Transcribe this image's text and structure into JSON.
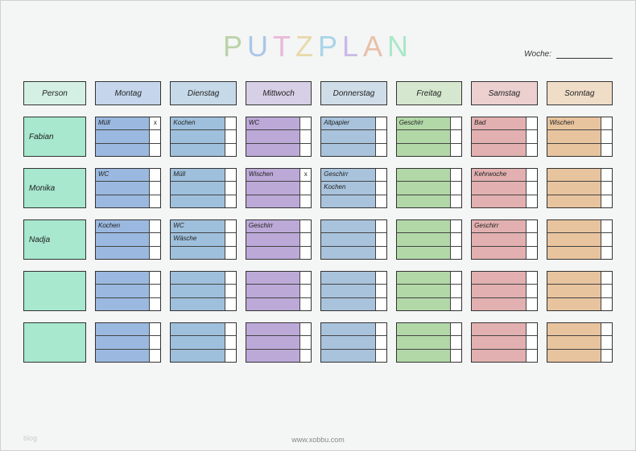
{
  "title_letters": [
    {
      "char": "P",
      "color": "#b9d3a8"
    },
    {
      "char": "U",
      "color": "#a9c7e8"
    },
    {
      "char": "T",
      "color": "#e8b9d6"
    },
    {
      "char": "Z",
      "color": "#e8d9a9"
    },
    {
      "char": "P",
      "color": "#a9d4e8"
    },
    {
      "char": "L",
      "color": "#c9b9e8"
    },
    {
      "char": "A",
      "color": "#e8c0a9"
    },
    {
      "char": "N",
      "color": "#a9e8c9"
    }
  ],
  "week_label": "Woche:",
  "footer_text": "www.xobbu.com",
  "watermark": "blog",
  "columns": [
    {
      "label": "Person",
      "header_bg": "#d4f0e4",
      "cell_bg": "#a7e8ce"
    },
    {
      "label": "Montag",
      "header_bg": "#c5d6ec",
      "cell_bg": "#9bb9e0"
    },
    {
      "label": "Dienstag",
      "header_bg": "#c6d9e8",
      "cell_bg": "#9fc0dc"
    },
    {
      "label": "Mittwoch",
      "header_bg": "#d6cfe6",
      "cell_bg": "#bca9d8"
    },
    {
      "label": "Donnerstag",
      "header_bg": "#cfdde8",
      "cell_bg": "#a9c3dc"
    },
    {
      "label": "Freitag",
      "header_bg": "#d5e8cf",
      "cell_bg": "#b2d8a8"
    },
    {
      "label": "Samstag",
      "header_bg": "#ecd0d0",
      "cell_bg": "#e2b0b0"
    },
    {
      "label": "Sonntag",
      "header_bg": "#f0ddc8",
      "cell_bg": "#e8c49e"
    }
  ],
  "rows": [
    {
      "person": "Fabian",
      "days": [
        [
          {
            "task": "Müll",
            "done": "x"
          },
          {
            "task": "",
            "done": ""
          },
          {
            "task": "",
            "done": ""
          }
        ],
        [
          {
            "task": "Kochen",
            "done": ""
          },
          {
            "task": "",
            "done": ""
          },
          {
            "task": "",
            "done": ""
          }
        ],
        [
          {
            "task": "WC",
            "done": ""
          },
          {
            "task": "",
            "done": ""
          },
          {
            "task": "",
            "done": ""
          }
        ],
        [
          {
            "task": "Altpapier",
            "done": ""
          },
          {
            "task": "",
            "done": ""
          },
          {
            "task": "",
            "done": ""
          }
        ],
        [
          {
            "task": "Geschirr",
            "done": ""
          },
          {
            "task": "",
            "done": ""
          },
          {
            "task": "",
            "done": ""
          }
        ],
        [
          {
            "task": "Bad",
            "done": ""
          },
          {
            "task": "",
            "done": ""
          },
          {
            "task": "",
            "done": ""
          }
        ],
        [
          {
            "task": "Wischen",
            "done": ""
          },
          {
            "task": "",
            "done": ""
          },
          {
            "task": "",
            "done": ""
          }
        ]
      ]
    },
    {
      "person": "Monika",
      "days": [
        [
          {
            "task": "WC",
            "done": ""
          },
          {
            "task": "",
            "done": ""
          },
          {
            "task": "",
            "done": ""
          }
        ],
        [
          {
            "task": "Müll",
            "done": ""
          },
          {
            "task": "",
            "done": ""
          },
          {
            "task": "",
            "done": ""
          }
        ],
        [
          {
            "task": "Wischen",
            "done": "x"
          },
          {
            "task": "",
            "done": ""
          },
          {
            "task": "",
            "done": ""
          }
        ],
        [
          {
            "task": "Geschirr",
            "done": ""
          },
          {
            "task": "Kochen",
            "done": ""
          },
          {
            "task": "",
            "done": ""
          }
        ],
        [
          {
            "task": "",
            "done": ""
          },
          {
            "task": "",
            "done": ""
          },
          {
            "task": "",
            "done": ""
          }
        ],
        [
          {
            "task": "Kehrwoche",
            "done": ""
          },
          {
            "task": "",
            "done": ""
          },
          {
            "task": "",
            "done": ""
          }
        ],
        [
          {
            "task": "",
            "done": ""
          },
          {
            "task": "",
            "done": ""
          },
          {
            "task": "",
            "done": ""
          }
        ]
      ]
    },
    {
      "person": "Nadja",
      "days": [
        [
          {
            "task": "Kochen",
            "done": ""
          },
          {
            "task": "",
            "done": ""
          },
          {
            "task": "",
            "done": ""
          }
        ],
        [
          {
            "task": "WC",
            "done": ""
          },
          {
            "task": "Wäsche",
            "done": ""
          },
          {
            "task": "",
            "done": ""
          }
        ],
        [
          {
            "task": "Geschirr",
            "done": ""
          },
          {
            "task": "",
            "done": ""
          },
          {
            "task": "",
            "done": ""
          }
        ],
        [
          {
            "task": "",
            "done": ""
          },
          {
            "task": "",
            "done": ""
          },
          {
            "task": "",
            "done": ""
          }
        ],
        [
          {
            "task": "",
            "done": ""
          },
          {
            "task": "",
            "done": ""
          },
          {
            "task": "",
            "done": ""
          }
        ],
        [
          {
            "task": "Geschirr",
            "done": ""
          },
          {
            "task": "",
            "done": ""
          },
          {
            "task": "",
            "done": ""
          }
        ],
        [
          {
            "task": "",
            "done": ""
          },
          {
            "task": "",
            "done": ""
          },
          {
            "task": "",
            "done": ""
          }
        ]
      ]
    },
    {
      "person": "",
      "days": [
        [
          {
            "task": "",
            "done": ""
          },
          {
            "task": "",
            "done": ""
          },
          {
            "task": "",
            "done": ""
          }
        ],
        [
          {
            "task": "",
            "done": ""
          },
          {
            "task": "",
            "done": ""
          },
          {
            "task": "",
            "done": ""
          }
        ],
        [
          {
            "task": "",
            "done": ""
          },
          {
            "task": "",
            "done": ""
          },
          {
            "task": "",
            "done": ""
          }
        ],
        [
          {
            "task": "",
            "done": ""
          },
          {
            "task": "",
            "done": ""
          },
          {
            "task": "",
            "done": ""
          }
        ],
        [
          {
            "task": "",
            "done": ""
          },
          {
            "task": "",
            "done": ""
          },
          {
            "task": "",
            "done": ""
          }
        ],
        [
          {
            "task": "",
            "done": ""
          },
          {
            "task": "",
            "done": ""
          },
          {
            "task": "",
            "done": ""
          }
        ],
        [
          {
            "task": "",
            "done": ""
          },
          {
            "task": "",
            "done": ""
          },
          {
            "task": "",
            "done": ""
          }
        ]
      ]
    },
    {
      "person": "",
      "days": [
        [
          {
            "task": "",
            "done": ""
          },
          {
            "task": "",
            "done": ""
          },
          {
            "task": "",
            "done": ""
          }
        ],
        [
          {
            "task": "",
            "done": ""
          },
          {
            "task": "",
            "done": ""
          },
          {
            "task": "",
            "done": ""
          }
        ],
        [
          {
            "task": "",
            "done": ""
          },
          {
            "task": "",
            "done": ""
          },
          {
            "task": "",
            "done": ""
          }
        ],
        [
          {
            "task": "",
            "done": ""
          },
          {
            "task": "",
            "done": ""
          },
          {
            "task": "",
            "done": ""
          }
        ],
        [
          {
            "task": "",
            "done": ""
          },
          {
            "task": "",
            "done": ""
          },
          {
            "task": "",
            "done": ""
          }
        ],
        [
          {
            "task": "",
            "done": ""
          },
          {
            "task": "",
            "done": ""
          },
          {
            "task": "",
            "done": ""
          }
        ],
        [
          {
            "task": "",
            "done": ""
          },
          {
            "task": "",
            "done": ""
          },
          {
            "task": "",
            "done": ""
          }
        ]
      ]
    }
  ]
}
